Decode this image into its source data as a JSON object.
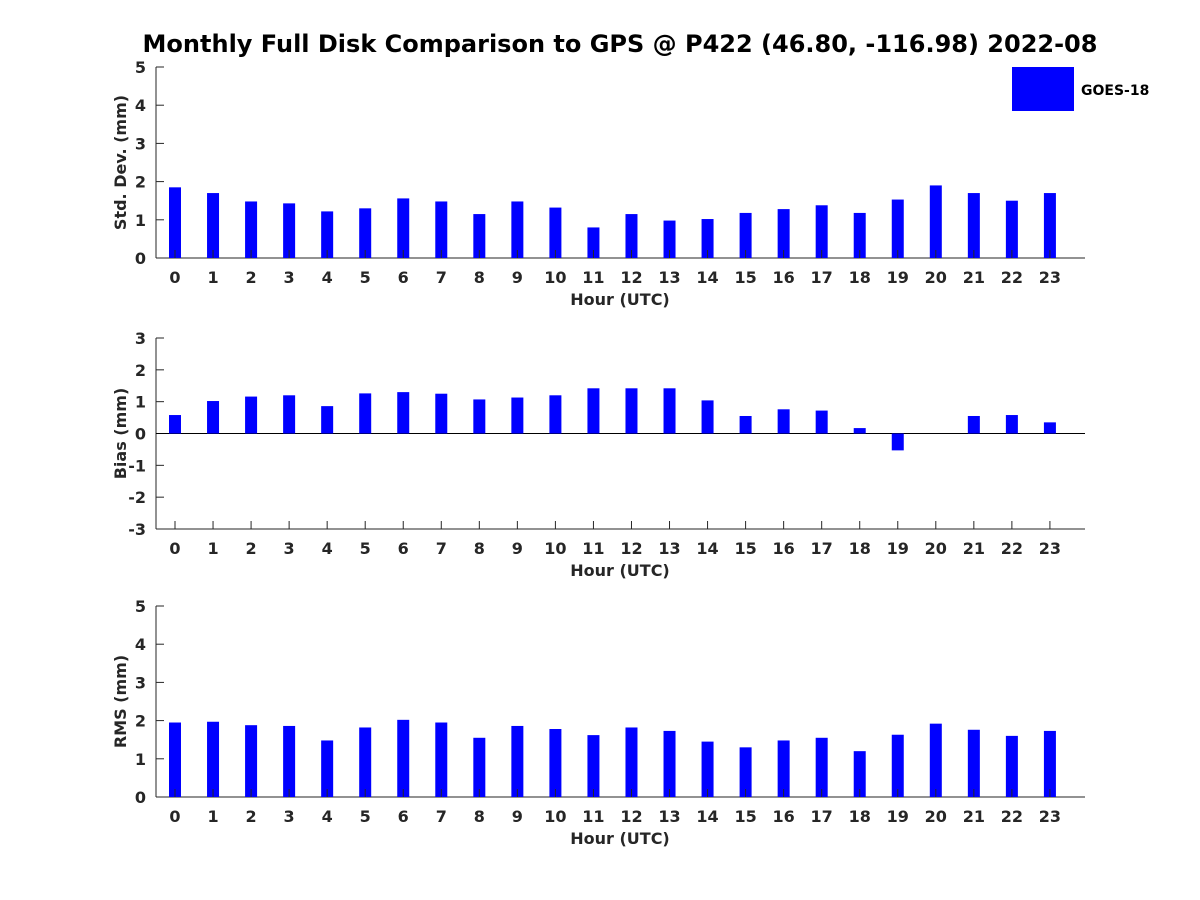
{
  "title": "Monthly Full Disk Comparison to GPS @ P422 (46.80, -116.98) 2022-08",
  "legend": {
    "label": "GOES-18",
    "placement": "top-right"
  },
  "colors": {
    "bar": "#0000ff",
    "axis": "#262626"
  },
  "chart_data": [
    {
      "type": "bar",
      "title": "",
      "xlabel": "Hour (UTC)",
      "ylabel": "Std. Dev. (mm)",
      "ylim": [
        0,
        5
      ],
      "yticks": [
        "0",
        "1",
        "2",
        "3",
        "4",
        "5"
      ],
      "categories": [
        "0",
        "1",
        "2",
        "3",
        "4",
        "5",
        "6",
        "7",
        "8",
        "9",
        "10",
        "11",
        "12",
        "13",
        "14",
        "15",
        "16",
        "17",
        "18",
        "19",
        "20",
        "21",
        "22",
        "23"
      ],
      "series": [
        {
          "name": "GOES-18",
          "values": [
            1.85,
            1.7,
            1.48,
            1.43,
            1.22,
            1.3,
            1.56,
            1.48,
            1.15,
            1.48,
            1.32,
            0.8,
            1.15,
            0.98,
            1.02,
            1.18,
            1.28,
            1.38,
            1.18,
            1.53,
            1.9,
            1.7,
            1.5,
            1.7
          ]
        }
      ]
    },
    {
      "type": "bar",
      "title": "",
      "xlabel": "Hour (UTC)",
      "ylabel": "Bias (mm)",
      "ylim": [
        -3,
        3
      ],
      "yticks": [
        "-3",
        "-2",
        "-1",
        "0",
        "1",
        "2",
        "3"
      ],
      "categories": [
        "0",
        "1",
        "2",
        "3",
        "4",
        "5",
        "6",
        "7",
        "8",
        "9",
        "10",
        "11",
        "12",
        "13",
        "14",
        "15",
        "16",
        "17",
        "18",
        "19",
        "20",
        "21",
        "22",
        "23"
      ],
      "series": [
        {
          "name": "GOES-18",
          "values": [
            0.58,
            1.02,
            1.16,
            1.2,
            0.86,
            1.26,
            1.3,
            1.25,
            1.07,
            1.13,
            1.2,
            1.42,
            1.42,
            1.42,
            1.04,
            0.55,
            0.76,
            0.72,
            0.17,
            -0.53,
            0.0,
            0.55,
            0.58,
            0.35
          ]
        }
      ]
    },
    {
      "type": "bar",
      "title": "",
      "xlabel": "Hour (UTC)",
      "ylabel": "RMS (mm)",
      "ylim": [
        0,
        5
      ],
      "yticks": [
        "0",
        "1",
        "2",
        "3",
        "4",
        "5"
      ],
      "categories": [
        "0",
        "1",
        "2",
        "3",
        "4",
        "5",
        "6",
        "7",
        "8",
        "9",
        "10",
        "11",
        "12",
        "13",
        "14",
        "15",
        "16",
        "17",
        "18",
        "19",
        "20",
        "21",
        "22",
        "23"
      ],
      "series": [
        {
          "name": "GOES-18",
          "values": [
            1.95,
            1.97,
            1.88,
            1.86,
            1.48,
            1.82,
            2.02,
            1.95,
            1.55,
            1.86,
            1.78,
            1.62,
            1.82,
            1.73,
            1.45,
            1.3,
            1.48,
            1.55,
            1.2,
            1.63,
            1.92,
            1.76,
            1.6,
            1.73
          ]
        }
      ]
    }
  ]
}
